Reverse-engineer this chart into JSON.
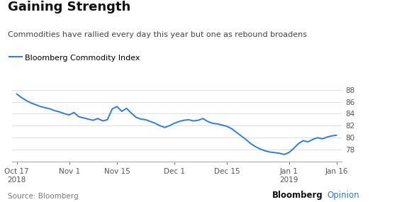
{
  "title": "Gaining Strength",
  "subtitle": "Commodities have rallied every day this year but one as rebound broadens",
  "legend_label": "Bloomberg Commodity Index",
  "source_text": "Source: Bloomberg",
  "brand_text": "Bloomberg",
  "brand_text2": "Opinion",
  "ylim": [
    76,
    89.5
  ],
  "yticks": [
    78,
    80,
    82,
    84,
    86,
    88
  ],
  "line_color": "#2a7de1",
  "background_color": "#ffffff",
  "x_tick_labels": [
    "Oct 17\n2018",
    "Nov 1",
    "Nov 15",
    "Dec 1",
    "Dec 15",
    "Jan 1\n2019",
    "Jan 16"
  ],
  "x_tick_positions": [
    0,
    11,
    21,
    33,
    44,
    57,
    67
  ],
  "values": [
    87.3,
    86.7,
    86.2,
    85.8,
    85.5,
    85.2,
    85.0,
    84.8,
    84.5,
    84.3,
    84.0,
    83.8,
    84.2,
    83.5,
    83.3,
    83.1,
    82.9,
    83.2,
    82.8,
    83.0,
    84.8,
    85.2,
    84.4,
    84.9,
    84.1,
    83.4,
    83.1,
    83.0,
    82.7,
    82.4,
    82.0,
    81.7,
    82.0,
    82.4,
    82.7,
    82.9,
    83.0,
    82.8,
    82.9,
    83.2,
    82.7,
    82.4,
    82.3,
    82.1,
    81.9,
    81.5,
    80.9,
    80.3,
    79.7,
    79.0,
    78.5,
    78.1,
    77.8,
    77.6,
    77.5,
    77.4,
    77.2,
    77.5,
    78.2,
    79.0,
    79.5,
    79.3,
    79.7,
    80.0,
    79.8,
    80.1,
    80.3,
    80.4
  ]
}
